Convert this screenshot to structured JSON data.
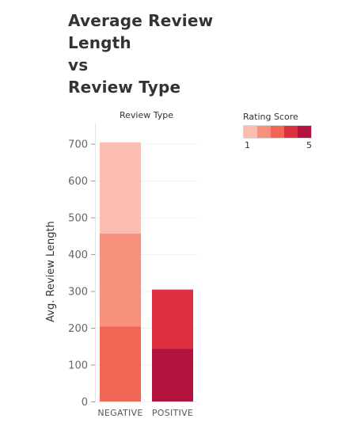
{
  "title_lines": [
    "Average Review",
    "Length",
    "vs",
    "Review Type"
  ],
  "column_header": "Review Type",
  "legend": {
    "title": "Rating Score",
    "min_label": "1",
    "max_label": "5",
    "colors": [
      "#fdbcb0",
      "#f8917c",
      "#f06553",
      "#dc3040",
      "#b2133e"
    ]
  },
  "chart_data": {
    "type": "bar",
    "stacked": true,
    "title": "Average Review Length vs Review Type",
    "xlabel": "Review Type",
    "ylabel": "Avg. Review Length",
    "ylim": [
      0,
      740
    ],
    "yticks": [
      0,
      100,
      200,
      300,
      400,
      500,
      600,
      700
    ],
    "categories": [
      "NEGATIVE",
      "POSITIVE"
    ],
    "series": [
      {
        "name": "1",
        "color": "#fdbcb0",
        "values": [
          248,
          0
        ]
      },
      {
        "name": "2",
        "color": "#f8917c",
        "values": [
          252,
          0
        ]
      },
      {
        "name": "3",
        "color": "#f06553",
        "values": [
          204,
          0
        ]
      },
      {
        "name": "4",
        "color": "#dc3040",
        "values": [
          0,
          161
        ]
      },
      {
        "name": "5",
        "color": "#b2133e",
        "values": [
          0,
          143
        ]
      }
    ]
  }
}
